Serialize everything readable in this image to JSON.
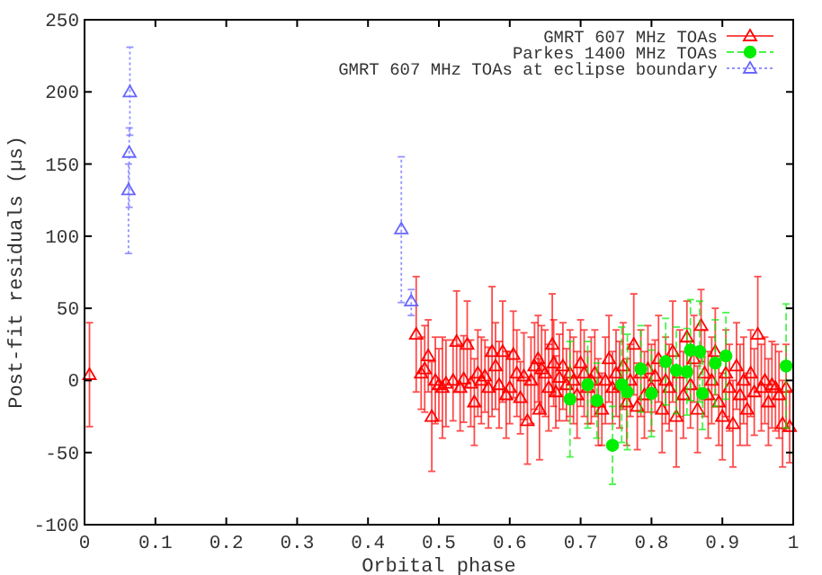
{
  "chart_data": {
    "type": "scatter",
    "xlabel": "Orbital phase",
    "ylabel": "Post-fit residuals (µs)",
    "xlim": [
      0,
      1
    ],
    "ylim": [
      -100,
      250
    ],
    "xticks": [
      0,
      0.1,
      0.2,
      0.3,
      0.4,
      0.5,
      0.6,
      0.7,
      0.8,
      0.9,
      1
    ],
    "yticks": [
      -100,
      -50,
      0,
      50,
      100,
      150,
      200,
      250
    ],
    "grid": false,
    "legend": "top right",
    "series": [
      {
        "name": "GMRT 607 MHz TOAs",
        "color": "#ff0000",
        "marker": "triangle",
        "line_style": "solid",
        "x": [
          0.007,
          0.468,
          0.475,
          0.48,
          0.485,
          0.49,
          0.495,
          0.5,
          0.505,
          0.51,
          0.52,
          0.525,
          0.53,
          0.535,
          0.54,
          0.545,
          0.55,
          0.555,
          0.56,
          0.565,
          0.57,
          0.575,
          0.58,
          0.585,
          0.59,
          0.595,
          0.6,
          0.605,
          0.61,
          0.615,
          0.62,
          0.625,
          0.63,
          0.635,
          0.64,
          0.642,
          0.645,
          0.65,
          0.655,
          0.66,
          0.662,
          0.665,
          0.67,
          0.675,
          0.68,
          0.685,
          0.69,
          0.695,
          0.7,
          0.705,
          0.71,
          0.715,
          0.72,
          0.725,
          0.73,
          0.735,
          0.74,
          0.745,
          0.75,
          0.755,
          0.76,
          0.765,
          0.77,
          0.775,
          0.78,
          0.785,
          0.79,
          0.795,
          0.8,
          0.805,
          0.81,
          0.815,
          0.82,
          0.825,
          0.83,
          0.835,
          0.84,
          0.845,
          0.85,
          0.855,
          0.86,
          0.865,
          0.87,
          0.875,
          0.88,
          0.885,
          0.89,
          0.895,
          0.9,
          0.905,
          0.91,
          0.915,
          0.92,
          0.925,
          0.93,
          0.935,
          0.94,
          0.945,
          0.95,
          0.955,
          0.96,
          0.965,
          0.97,
          0.975,
          0.98,
          0.985,
          0.99,
          0.995
        ],
        "values": [
          4,
          32,
          5,
          8,
          17,
          -25,
          0,
          -3,
          -5,
          -2,
          0,
          27,
          -5,
          1,
          25,
          -2,
          -15,
          5,
          0,
          3,
          -5,
          20,
          10,
          -3,
          20,
          -10,
          -5,
          18,
          5,
          -12,
          3,
          -28,
          0,
          10,
          15,
          -20,
          8,
          5,
          -5,
          25,
          12,
          -8,
          2,
          10,
          -3,
          5,
          0,
          -10,
          12,
          5,
          -5,
          0,
          5,
          -15,
          -20,
          0,
          15,
          -5,
          5,
          -3,
          10,
          -15,
          0,
          25,
          -18,
          5,
          -10,
          8,
          -5,
          3,
          15,
          -20,
          0,
          -5,
          20,
          -25,
          5,
          -10,
          30,
          -3,
          15,
          -20,
          38,
          5,
          -10,
          0,
          20,
          -15,
          -25,
          5,
          -5,
          -30,
          10,
          -10,
          0,
          -20,
          5,
          -8,
          32,
          -5,
          0,
          -15,
          -3,
          -5,
          -10,
          -30,
          -5,
          -32
        ],
        "errors": [
          36,
          40,
          25,
          30,
          25,
          38,
          30,
          25,
          35,
          30,
          28,
          35,
          30,
          30,
          30,
          30,
          30,
          30,
          30,
          25,
          28,
          45,
          30,
          30,
          35,
          30,
          25,
          30,
          30,
          25,
          30,
          30,
          30,
          30,
          30,
          35,
          30,
          30,
          30,
          35,
          30,
          25,
          30,
          30,
          25,
          30,
          30,
          30,
          30,
          30,
          25,
          30,
          30,
          30,
          25,
          30,
          30,
          25,
          30,
          30,
          30,
          30,
          25,
          35,
          30,
          30,
          30,
          30,
          30,
          25,
          30,
          30,
          30,
          30,
          35,
          35,
          30,
          30,
          25,
          30,
          30,
          30,
          25,
          30,
          30,
          30,
          30,
          30,
          30,
          30,
          30,
          30,
          30,
          35,
          30,
          25,
          30,
          30,
          40,
          30,
          30,
          30,
          30,
          30,
          30,
          30,
          30,
          25
        ]
      },
      {
        "name": "Parkes 1400 MHz TOAs",
        "color": "#00ee00",
        "marker": "circle",
        "line_style": "dashed",
        "x": [
          0.685,
          0.71,
          0.723,
          0.745,
          0.758,
          0.766,
          0.785,
          0.8,
          0.82,
          0.835,
          0.85,
          0.855,
          0.868,
          0.872,
          0.89,
          0.905,
          0.99
        ],
        "values": [
          -13,
          -3,
          -14,
          -45,
          -3,
          -8,
          8,
          -9,
          13,
          7,
          6,
          21,
          20,
          -9,
          12,
          17,
          10
        ],
        "errors": [
          40,
          30,
          26,
          27,
          40,
          40,
          30,
          30,
          30,
          30,
          30,
          35,
          35,
          25,
          30,
          30,
          43
        ]
      },
      {
        "name": "GMRT 607 MHz TOAs at eclipse boundary",
        "color": "#6666ff",
        "marker": "triangle",
        "line_style": "dotted",
        "x": [
          0.064,
          0.063,
          0.062,
          0.447,
          0.461
        ],
        "values": [
          200,
          158,
          132,
          105,
          55
        ],
        "errors": [
          [
            170,
            231
          ],
          [
            120,
            175
          ],
          [
            88,
            150
          ],
          [
            54,
            155
          ],
          [
            45,
            63
          ]
        ]
      }
    ]
  }
}
